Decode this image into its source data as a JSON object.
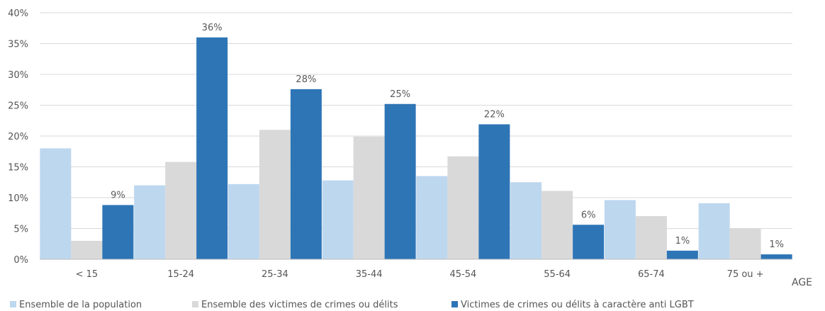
{
  "chart_data": {
    "type": "bar",
    "categories": [
      "< 15",
      "15-24",
      "25-34",
      "35-44",
      "45-54",
      "55-64",
      "65-74",
      "75 ou +"
    ],
    "series": [
      {
        "name": "Ensemble de la population",
        "color": "#bdd7ee",
        "values": [
          18,
          12,
          12.2,
          12.8,
          13.5,
          12.5,
          9.6,
          9.1
        ]
      },
      {
        "name": "Ensemble des victimes de crimes ou délits",
        "color": "#d9d9d9",
        "values": [
          3,
          15.8,
          21,
          19.9,
          16.7,
          11.1,
          7,
          5
        ]
      },
      {
        "name": "Victimes de crimes ou délits à caractère anti LGBT",
        "color": "#2e75b6",
        "values": [
          8.8,
          36,
          27.6,
          25.2,
          21.9,
          5.6,
          1.4,
          0.8
        ],
        "data_labels": [
          "9%",
          "36%",
          "28%",
          "25%",
          "22%",
          "6%",
          "1%",
          "1%"
        ]
      }
    ],
    "xlabel": "AGE",
    "ylabel": "",
    "ylim": [
      0,
      40
    ],
    "y_ticks": [
      0,
      5,
      10,
      15,
      20,
      25,
      30,
      35,
      40
    ],
    "y_tick_labels": [
      "0%",
      "5%",
      "10%",
      "15%",
      "20%",
      "25%",
      "30%",
      "35%",
      "40%"
    ],
    "grid": true,
    "legend_position": "bottom-left"
  }
}
